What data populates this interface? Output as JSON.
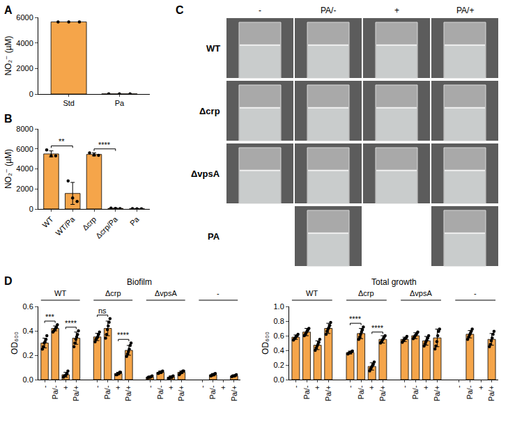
{
  "chart_data": [
    {
      "panel": "A",
      "type": "bar",
      "categories": [
        "Std",
        "Pa"
      ],
      "values": [
        5650,
        10
      ],
      "points": [
        [
          5650,
          5650,
          5650
        ],
        [
          10,
          10,
          10
        ]
      ],
      "color": "#f5a54a",
      "y_label": "NO₂⁻ (µM)",
      "ylim": [
        0,
        6000
      ],
      "yticks": [
        0,
        2000,
        4000,
        6000
      ],
      "grid": false
    },
    {
      "panel": "B",
      "type": "bar",
      "categories": [
        "WT",
        "WT/Pa",
        "Δcrp",
        "Δcrp/Pa",
        "Pa"
      ],
      "values": [
        5500,
        1550,
        5450,
        60,
        20
      ],
      "errors": [
        300,
        1100,
        150,
        40,
        15
      ],
      "points": [
        [
          5900,
          5300,
          5300
        ],
        [
          2800,
          1100,
          750
        ],
        [
          5600,
          5400,
          5350
        ],
        [
          80,
          60,
          40
        ],
        [
          30,
          20,
          10
        ]
      ],
      "comparisons": [
        {
          "from": "WT",
          "to": "WT/Pa",
          "label": "**"
        },
        {
          "from": "Δcrp",
          "to": "Δcrp/Pa",
          "label": "****"
        }
      ],
      "color": "#f5a54a",
      "y_label": "NO₂⁻ (µM)",
      "ylim": [
        0,
        8000
      ],
      "yticks": [
        0,
        2000,
        4000,
        6000,
        8000
      ],
      "grid": false
    },
    {
      "panel": "D",
      "type": "bar",
      "title": "Biofilm",
      "y_label": "OD₆₀₀",
      "categories": [
        "-",
        "Pa/-",
        "+",
        "Pa/+"
      ],
      "groups": [
        {
          "name": "WT",
          "values": [
            0.3,
            0.42,
            0.04,
            0.34
          ],
          "errors": [
            0.04,
            0.02,
            0.02,
            0.05
          ],
          "points": [
            [
              0.25,
              0.27,
              0.3,
              0.31,
              0.33,
              0.36
            ],
            [
              0.39,
              0.4,
              0.41,
              0.42,
              0.43,
              0.45
            ],
            [
              0.02,
              0.03,
              0.03,
              0.04,
              0.05,
              0.07
            ],
            [
              0.27,
              0.3,
              0.33,
              0.35,
              0.37,
              0.4
            ]
          ]
        },
        {
          "name": "Δcrp",
          "values": [
            0.35,
            0.42,
            0.05,
            0.24
          ],
          "errors": [
            0.03,
            0.06,
            0.01,
            0.04
          ],
          "points": [
            [
              0.31,
              0.33,
              0.34,
              0.35,
              0.37,
              0.39
            ],
            [
              0.34,
              0.37,
              0.41,
              0.44,
              0.47,
              0.5
            ],
            [
              0.04,
              0.04,
              0.05,
              0.05,
              0.06,
              0.06
            ],
            [
              0.19,
              0.21,
              0.23,
              0.25,
              0.28,
              0.3
            ]
          ]
        },
        {
          "name": "ΔvpsA",
          "values": [
            0.02,
            0.06,
            0.02,
            0.06
          ],
          "errors": [
            0.005,
            0.01,
            0.01,
            0.01
          ],
          "points": [
            [
              0.015,
              0.02,
              0.02,
              0.02,
              0.025,
              0.03
            ],
            [
              0.05,
              0.055,
              0.06,
              0.06,
              0.065,
              0.07
            ],
            [
              0.01,
              0.015,
              0.02,
              0.02,
              0.025,
              0.03
            ],
            [
              0.04,
              0.05,
              0.06,
              0.06,
              0.07,
              0.07
            ]
          ]
        },
        {
          "name": "-",
          "values": [
            null,
            0.04,
            null,
            0.03
          ],
          "errors": [
            null,
            0.01,
            null,
            0.005
          ],
          "points": [
            [],
            [
              0.03,
              0.035,
              0.04,
              0.04,
              0.045,
              0.05
            ],
            [],
            [
              0.025,
              0.03,
              0.03,
              0.03,
              0.035,
              0.04
            ]
          ]
        }
      ],
      "comparisons": [
        {
          "group": "WT",
          "from": "-",
          "to": "Pa/-",
          "label": "***"
        },
        {
          "group": "WT",
          "from": "+",
          "to": "Pa/+",
          "label": "****"
        },
        {
          "group": "Δcrp",
          "from": "-",
          "to": "Pa/-",
          "label": "ns"
        },
        {
          "group": "Δcrp",
          "from": "+",
          "to": "Pa/+",
          "label": "****"
        }
      ],
      "color": "#f5a54a",
      "ylim": [
        0,
        0.6
      ],
      "yticks": [
        {
          "value": 0,
          "label": "0.0"
        },
        0.2,
        0.4,
        0.6
      ],
      "grid": false
    },
    {
      "type": "bar",
      "title": "Total growth",
      "y_label": "OD₆₀₀",
      "categories": [
        "-",
        "Pa/-",
        "+",
        "Pa/+"
      ],
      "groups": [
        {
          "name": "WT",
          "values": [
            0.58,
            0.65,
            0.47,
            0.7
          ],
          "errors": [
            0.03,
            0.05,
            0.06,
            0.07
          ],
          "points": [
            [
              0.54,
              0.56,
              0.57,
              0.59,
              0.6,
              0.62
            ],
            [
              0.6,
              0.62,
              0.64,
              0.66,
              0.68,
              0.7
            ],
            [
              0.4,
              0.43,
              0.46,
              0.48,
              0.51,
              0.55
            ],
            [
              0.62,
              0.66,
              0.69,
              0.71,
              0.74,
              0.78
            ]
          ]
        },
        {
          "name": "Δcrp",
          "values": [
            0.37,
            0.63,
            0.18,
            0.55
          ],
          "errors": [
            0.02,
            0.07,
            0.05,
            0.05
          ],
          "points": [
            [
              0.35,
              0.36,
              0.37,
              0.37,
              0.38,
              0.39
            ],
            [
              0.55,
              0.58,
              0.62,
              0.65,
              0.68,
              0.72
            ],
            [
              0.12,
              0.15,
              0.17,
              0.19,
              0.21,
              0.24
            ],
            [
              0.5,
              0.52,
              0.54,
              0.56,
              0.58,
              0.6
            ]
          ]
        },
        {
          "name": "ΔvpsA",
          "values": [
            0.55,
            0.6,
            0.53,
            0.57
          ],
          "errors": [
            0.03,
            0.04,
            0.06,
            0.12
          ],
          "points": [
            [
              0.51,
              0.53,
              0.55,
              0.56,
              0.57,
              0.59
            ],
            [
              0.56,
              0.58,
              0.6,
              0.61,
              0.63,
              0.65
            ],
            [
              0.46,
              0.49,
              0.52,
              0.54,
              0.57,
              0.6
            ],
            [
              0.42,
              0.46,
              0.52,
              0.6,
              0.66,
              0.69
            ]
          ]
        },
        {
          "name": "-",
          "values": [
            null,
            0.62,
            null,
            0.55
          ],
          "errors": [
            null,
            0.05,
            null,
            0.08
          ],
          "points": [
            [],
            [
              0.55,
              0.58,
              0.61,
              0.63,
              0.66,
              0.69
            ],
            [],
            [
              0.45,
              0.48,
              0.53,
              0.57,
              0.62,
              0.66
            ]
          ]
        }
      ],
      "comparisons": [
        {
          "group": "Δcrp",
          "from": "-",
          "to": "Pa/-",
          "label": "****"
        },
        {
          "group": "Δcrp",
          "from": "+",
          "to": "Pa/+",
          "label": "****"
        }
      ],
      "color": "#f5a54a",
      "ylim": [
        0,
        1.0
      ],
      "yticks": [
        {
          "value": 0,
          "label": "0.0"
        },
        0.2,
        0.4,
        0.6,
        0.8,
        {
          "value": 1.0,
          "label": "1.0"
        }
      ],
      "grid": false
    }
  ],
  "panel_c": {
    "panel": "C",
    "columns": [
      "-",
      "PA/-",
      "+",
      "PA/+"
    ],
    "rows": [
      {
        "label": "WT",
        "columns": [
          "-",
          "PA/-",
          "+",
          "PA/+"
        ]
      },
      {
        "label": "Δcrp",
        "columns": [
          "-",
          "PA/-",
          "+",
          "PA/+"
        ]
      },
      {
        "label": "ΔvpsA",
        "columns": [
          "-",
          "PA/-",
          "+",
          "PA/+"
        ]
      },
      {
        "label": "PA",
        "columns": [
          "PA/-",
          "PA/+"
        ]
      }
    ]
  }
}
